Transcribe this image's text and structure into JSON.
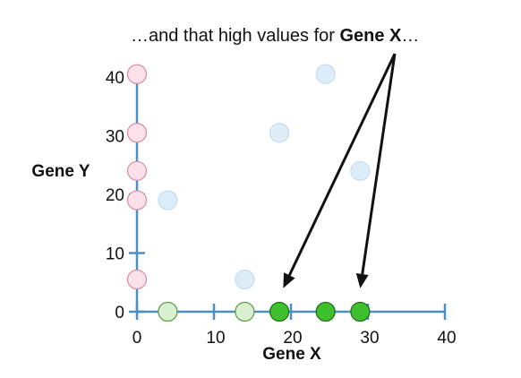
{
  "caption": {
    "prefix": "…and that high values for ",
    "emphasis": "Gene X",
    "suffix": "…"
  },
  "chart_data": {
    "type": "scatter",
    "xlabel": "Gene X",
    "ylabel": "Gene Y",
    "xlim": [
      0,
      40
    ],
    "ylim": [
      0,
      40
    ],
    "x_ticks": [
      0,
      10,
      20,
      30,
      40
    ],
    "y_ticks": [
      0,
      10,
      20,
      30,
      40
    ],
    "series": [
      {
        "role": "points in the Gene X / Gene Y plane",
        "color": "#d6e9f8",
        "stroke": "#c3dcef",
        "opacity": 0.85,
        "points": [
          [
            4,
            19
          ],
          [
            14,
            5.5
          ],
          [
            18.5,
            30.5
          ],
          [
            24.5,
            40.5
          ],
          [
            29,
            24
          ]
        ]
      },
      {
        "role": "Gene Y values projected onto the y-axis",
        "color": "#fbe1ea",
        "stroke": "#d98aa3",
        "opacity": 1,
        "points": [
          [
            0,
            5.5
          ],
          [
            0,
            19
          ],
          [
            0,
            24
          ],
          [
            0,
            30.5
          ],
          [
            0,
            40.5
          ]
        ]
      },
      {
        "role": "low Gene X values projected onto the x-axis",
        "color": "#d8f0cf",
        "stroke": "#5a9a45",
        "opacity": 1,
        "points": [
          [
            4,
            0
          ],
          [
            14,
            0
          ]
        ]
      },
      {
        "role": "high Gene X values projected onto the x-axis",
        "color": "#3fbf2e",
        "stroke": "#1e6b15",
        "opacity": 1,
        "points": [
          [
            18.5,
            0
          ],
          [
            24.5,
            0
          ],
          [
            29,
            0
          ]
        ]
      }
    ],
    "arrows": [
      {
        "to": [
          19,
          4
        ]
      },
      {
        "to": [
          29,
          4
        ]
      }
    ],
    "colors": {
      "axis": "#4d8fc4",
      "arrow": "#111111"
    }
  }
}
